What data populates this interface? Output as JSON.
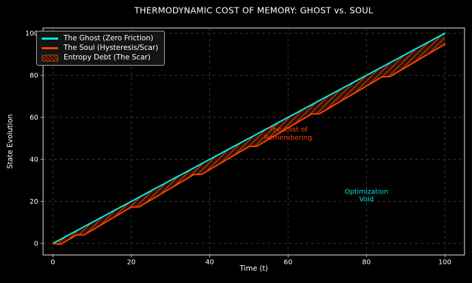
{
  "chart_data": {
    "type": "line",
    "title": "THERMODYNAMIC COST OF MEMORY: GHOST vs. SOUL",
    "xlabel": "Time (t)",
    "ylabel": "State Evolution",
    "xlim": [
      -2.5,
      105
    ],
    "ylim": [
      -5.5,
      102.5
    ],
    "xticks": [
      0,
      20,
      40,
      60,
      80,
      100
    ],
    "yticks": [
      0,
      20,
      40,
      60,
      80,
      100
    ],
    "grid": "dashed",
    "legend_position": "upper left",
    "x": [
      0,
      2,
      4,
      6,
      8,
      10,
      12,
      14,
      16,
      18,
      20,
      22,
      24,
      26,
      28,
      30,
      32,
      34,
      36,
      38,
      40,
      42,
      44,
      46,
      48,
      50,
      52,
      54,
      56,
      58,
      60,
      62,
      64,
      66,
      68,
      70,
      72,
      74,
      76,
      78,
      80,
      82,
      84,
      86,
      88,
      90,
      92,
      94,
      96,
      98,
      100
    ],
    "series": [
      {
        "name": "The Ghost (Zero Friction)",
        "color": "#00f5f5",
        "values": [
          0,
          2,
          4,
          6,
          8,
          10,
          12,
          14,
          16,
          18,
          20,
          22,
          24,
          26,
          28,
          30,
          32,
          34,
          36,
          38,
          40,
          42,
          44,
          46,
          48,
          50,
          52,
          54,
          56,
          58,
          60,
          62,
          64,
          66,
          68,
          70,
          72,
          74,
          76,
          78,
          80,
          82,
          84,
          86,
          88,
          90,
          92,
          94,
          96,
          98,
          100
        ]
      },
      {
        "name": "The Soul (Hysteresis/Scar)",
        "color": "#ff4500",
        "values": [
          0,
          -0.4,
          1.8,
          4.0,
          4.1,
          6.3,
          8.5,
          10.7,
          12.9,
          15.1,
          17.3,
          17.4,
          19.6,
          21.8,
          24.0,
          26.2,
          28.4,
          30.6,
          32.8,
          32.9,
          35.1,
          37.3,
          39.5,
          41.7,
          43.9,
          46.1,
          46.2,
          48.4,
          50.6,
          52.8,
          55.0,
          57.2,
          59.4,
          61.6,
          61.7,
          63.9,
          66.1,
          68.3,
          70.5,
          72.7,
          74.9,
          77.1,
          79.3,
          79.4,
          81.6,
          83.8,
          86.0,
          88.2,
          90.4,
          92.6,
          94.8
        ]
      }
    ],
    "area": {
      "name": "Entropy Debt (The Scar)",
      "between": [
        "The Ghost (Zero Friction)",
        "The Soul (Hysteresis/Scar)"
      ],
      "fill_color": "#350e03",
      "hatch_color": "#a84612",
      "hatch": "///"
    },
    "legend": [
      {
        "label": "The Ghost (Zero Friction)",
        "swatch": "line",
        "color": "#00f5f5"
      },
      {
        "label": "The Soul (Hysteresis/Scar)",
        "swatch": "line",
        "color": "#ff4500"
      },
      {
        "label": "Entropy Debt (The Scar)",
        "swatch": "patch",
        "color": "#350e03",
        "hatch_color": "#a84612"
      }
    ],
    "annotations": [
      {
        "text": "The Cost of\nRemembering",
        "x": 60,
        "y": 52,
        "color": "#ff4500"
      },
      {
        "text": "Optimization\nVoid",
        "x": 80,
        "y": 22.5,
        "color": "#00e5e5"
      }
    ],
    "colors": {
      "background": "#000000",
      "spine": "#c8c8c8",
      "grid": "#3c3c3c",
      "tick_text": "#ffffff"
    }
  }
}
